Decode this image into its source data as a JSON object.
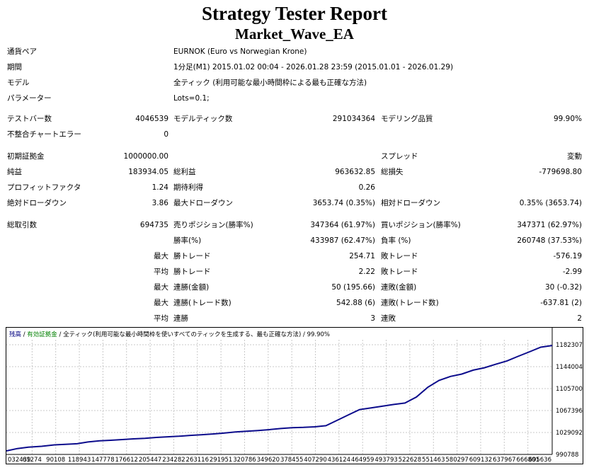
{
  "report": {
    "title": "Strategy Tester Report",
    "ea_name": "Market_Wave_EA"
  },
  "info": [
    {
      "label": "通貨ペア",
      "value": "EURNOK (Euro vs Norwegian Krone)"
    },
    {
      "label": "期間",
      "value": "1分足(M1) 2015.01.02 00:04 - 2026.01.28 23:59 (2015.01.01 - 2026.01.29)"
    },
    {
      "label": "モデル",
      "value": "全ティック (利用可能な最小時間枠による最も正確な方法)"
    },
    {
      "label": "パラメーター",
      "value": "Lots=0.1;"
    }
  ],
  "stats": {
    "bars_label": "テストバー数",
    "bars": "4046539",
    "ticks_label": "モデルティック数",
    "ticks": "291034364",
    "quality_label": "モデリング品質",
    "quality": "99.90%",
    "mismatch_label": "不整合チャートエラー",
    "mismatch": "0",
    "deposit_label": "初期証拠金",
    "deposit": "1000000.00",
    "spread_label": "スプレッド",
    "spread": "変動",
    "net_label": "純益",
    "net": "183934.05",
    "gross_profit_label": "総利益",
    "gross_profit": "963632.85",
    "gross_loss_label": "総損失",
    "gross_loss": "-779698.80",
    "pf_label": "プロフィットファクタ",
    "pf": "1.24",
    "expected_label": "期待利得",
    "expected": "0.26",
    "abs_dd_label": "絶対ドローダウン",
    "abs_dd": "3.86",
    "max_dd_label": "最大ドローダウン",
    "max_dd": "3653.74 (0.35%)",
    "rel_dd_label": "相対ドローダウン",
    "rel_dd": "0.35% (3653.74)",
    "total_trades_label": "総取引数",
    "total_trades": "694735",
    "short_label": "売りポジション(勝率%)",
    "short": "347364 (61.97%)",
    "long_label": "買いポジション(勝率%)",
    "long": "347371 (62.97%)",
    "win_pct_label": "勝率(%)",
    "win_pct": "433987 (62.47%)",
    "loss_pct_label": "負率 (%)",
    "loss_pct": "260748 (37.53%)",
    "max_label": "最大",
    "avg_label": "平均",
    "largest_win_label": "勝トレード",
    "largest_win": "254.71",
    "largest_loss_label": "敗トレード",
    "largest_loss": "-576.19",
    "avg_win_label": "勝トレード",
    "avg_win": "2.22",
    "avg_loss_label": "敗トレード",
    "avg_loss": "-2.99",
    "max_consec_win_label": "連勝(金額)",
    "max_consec_win": "50 (195.66)",
    "max_consec_loss_label": "連敗(金額)",
    "max_consec_loss": "30 (-0.32)",
    "max_consec_profit_label": "連勝(トレード数)",
    "max_consec_profit": "542.88 (6)",
    "max_consec_lossamt_label": "連敗(トレード数)",
    "max_consec_lossamt": "-637.81 (2)",
    "avg_consec_win_label": "連勝",
    "avg_consec_win": "3",
    "avg_consec_loss_label": "連敗",
    "avg_consec_loss": "2"
  },
  "chart_data": {
    "type": "line",
    "legend": {
      "balance": "残高",
      "sep1": " / ",
      "equity": "有効証拠金",
      "sep2": " / ",
      "model": "全ティック(利用可能な最小時間枠を使いすべてのティックを生成する、最も正確な方法)",
      "sep3": " / ",
      "quality": "99.90%"
    },
    "y_ticks": [
      990788,
      1029092,
      1067396,
      1105700,
      1144004,
      1182307
    ],
    "x_ticks": [
      "032439",
      "61274",
      "90108",
      "118943",
      "147778",
      "176612",
      "205447",
      "234282",
      "263116",
      "291951",
      "320786",
      "349620",
      "378455",
      "407290",
      "436124",
      "464959",
      "493793",
      "522628",
      "551463",
      "580297",
      "609132",
      "637967",
      "666801",
      "695636"
    ],
    "ylim": [
      990788,
      1191000
    ],
    "xlim": [
      0,
      695636
    ],
    "series": [
      {
        "x": [
          0,
          14000,
          28000,
          45000,
          61274,
          75000,
          90108,
          104000,
          118943,
          133000,
          147778,
          162000,
          176612,
          191000,
          205447,
          220000,
          234282,
          248000,
          263116,
          277000,
          291951,
          306000,
          320786,
          335000,
          349620,
          364000,
          378455,
          393000,
          407290,
          421000,
          436124,
          450000,
          464959,
          479000,
          493793,
          508000,
          522628,
          537000,
          551463,
          566000,
          580297,
          595000,
          609132,
          623000,
          637967,
          652000,
          666801,
          681000,
          695636
        ],
        "y": [
          997000,
          1001000,
          1003500,
          1005000,
          1007500,
          1008500,
          1009500,
          1012500,
          1014500,
          1015500,
          1016800,
          1018000,
          1019000,
          1020500,
          1021500,
          1022500,
          1024000,
          1025200,
          1026500,
          1028000,
          1030000,
          1031200,
          1032500,
          1034000,
          1036000,
          1037500,
          1038000,
          1039000,
          1041000,
          1050000,
          1060000,
          1069000,
          1072000,
          1075000,
          1078000,
          1080500,
          1091000,
          1108000,
          1120000,
          1127000,
          1131000,
          1138000,
          1142000,
          1148000,
          1154000,
          1162000,
          1170000,
          1178000,
          1181000
        ]
      }
    ]
  }
}
